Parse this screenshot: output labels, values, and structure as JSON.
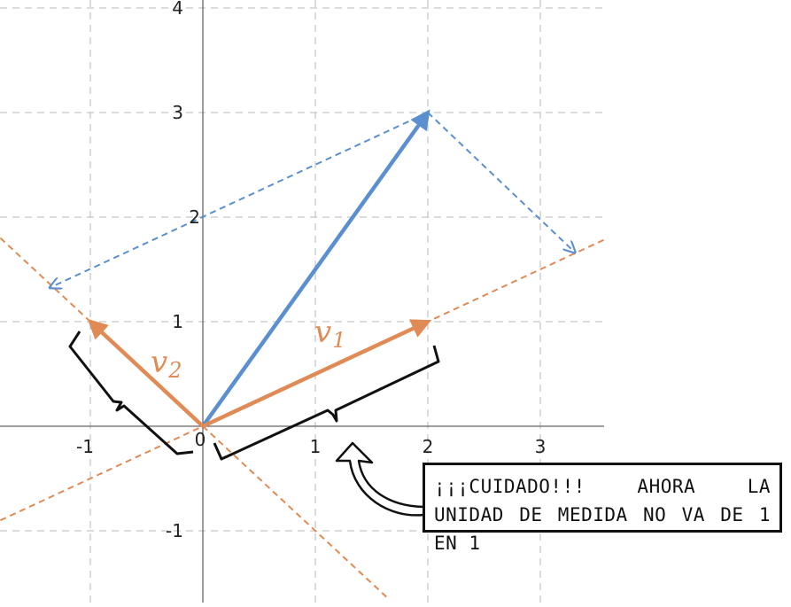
{
  "axes": {
    "x_ticks": [
      {
        "value": -1,
        "label": "-1"
      },
      {
        "value": 0,
        "label": "0"
      },
      {
        "value": 1,
        "label": "1"
      },
      {
        "value": 2,
        "label": "2"
      },
      {
        "value": 3,
        "label": "3"
      }
    ],
    "y_ticks": [
      {
        "value": -1,
        "label": "-1"
      },
      {
        "value": 1,
        "label": "1"
      },
      {
        "value": 2,
        "label": "2"
      },
      {
        "value": 3,
        "label": "3"
      },
      {
        "value": 4,
        "label": "4"
      }
    ],
    "grid": true
  },
  "vectors": {
    "v": {
      "from": [
        0,
        0
      ],
      "to": [
        2,
        3
      ]
    },
    "v1": {
      "from": [
        0,
        0
      ],
      "to": [
        2,
        1
      ],
      "label": "v",
      "subscript": "1"
    },
    "v2": {
      "from": [
        0,
        0
      ],
      "to": [
        -1,
        1
      ],
      "label": "v",
      "subscript": "2"
    }
  },
  "colors": {
    "blue": "#5b8fd0",
    "orange": "#e08a55",
    "grid": "#c8c8c8",
    "axis": "#666666"
  },
  "note": {
    "text": "¡¡¡Cuidado!!! Ahora la unidad de medida no va de 1 en 1"
  }
}
